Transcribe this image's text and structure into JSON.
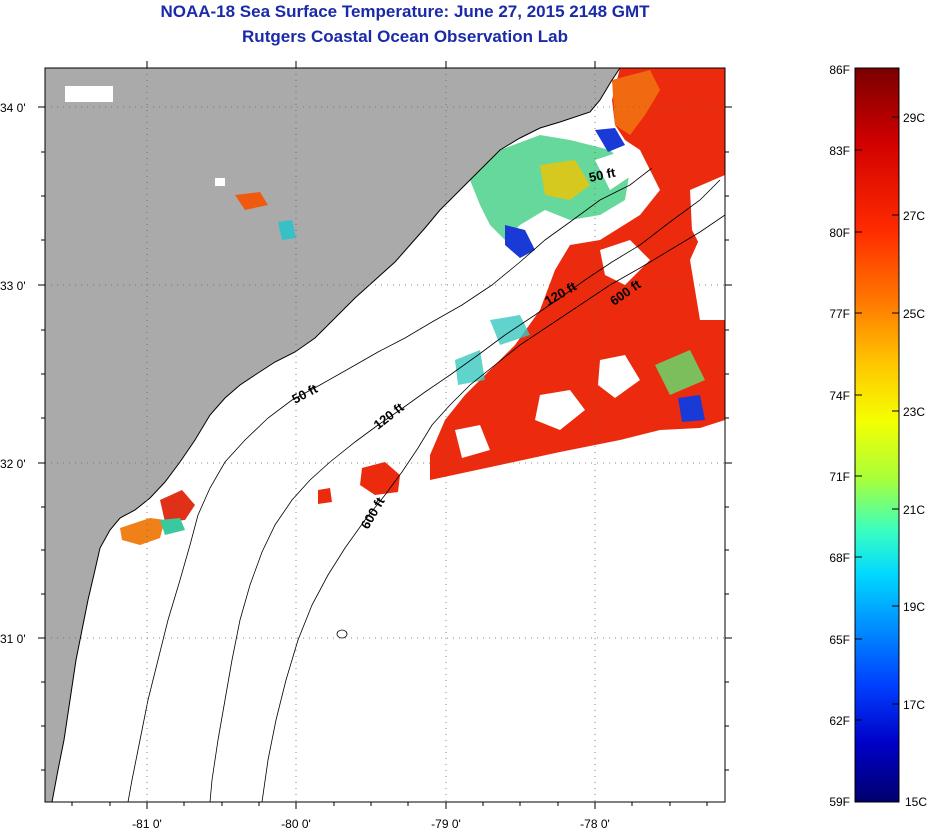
{
  "header": {
    "title": "NOAA-18 Sea Surface Temperature:  June 27, 2015 2148 GMT",
    "subtitle": "Rutgers Coastal Ocean Observation Lab"
  },
  "map": {
    "lat_labels": [
      "34 0'",
      "33 0'",
      "32 0'",
      "31 0'"
    ],
    "lon_labels": [
      "-81 0'",
      "-80 0'",
      "-79 0'",
      "-78 0'"
    ],
    "isobath_labels": [
      "50 ft",
      "50 ft",
      "120 ft",
      "120 ft",
      "600 ft",
      "600 ft"
    ]
  },
  "colorbar": {
    "fahrenheit": [
      "86F",
      "83F",
      "80F",
      "77F",
      "74F",
      "71F",
      "68F",
      "65F",
      "62F",
      "59F"
    ],
    "celsius": [
      "29C",
      "27C",
      "25C",
      "23C",
      "21C",
      "19C",
      "17C",
      "15C"
    ],
    "colors": [
      "#7a0000",
      "#d00000",
      "#ff2a00",
      "#ff7a00",
      "#ffc400",
      "#f5ff00",
      "#a8ff3a",
      "#3affc0",
      "#00d8ff",
      "#0090ff",
      "#0040ff",
      "#0000c8",
      "#00006e"
    ]
  },
  "colors": {
    "land": "#aaaaaa",
    "water_warm": "#ee2a0c",
    "title": "#1a2aa8"
  }
}
